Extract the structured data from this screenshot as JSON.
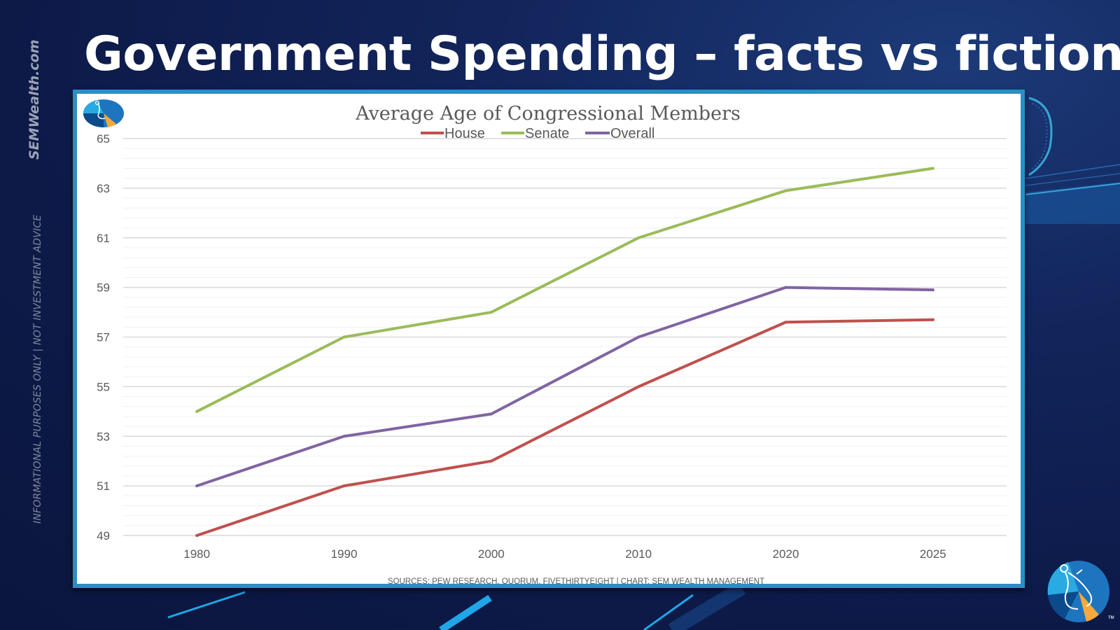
{
  "slide": {
    "title": "Government Spending – facts vs fiction",
    "brand": "SEMWealth.com",
    "disclaimer": "INFORMATIONAL PURPOSES ONLY  |  NOT INVESTMENT ADVICE",
    "trademark": "TM"
  },
  "colors": {
    "house": "#c0504d",
    "senate": "#9bbb59",
    "overall": "#8064a2",
    "frame": "#2a8fc4",
    "background": "#0d1a48"
  },
  "chart_data": {
    "type": "line",
    "title": "Average Age of Congressional Members",
    "categories": [
      "1980",
      "1990",
      "2000",
      "2010",
      "2020",
      "2025"
    ],
    "series": [
      {
        "name": "House",
        "values": [
          49,
          51,
          52,
          55,
          57.6,
          57.7
        ]
      },
      {
        "name": "Senate",
        "values": [
          54,
          57,
          58,
          61,
          62.9,
          63.8
        ]
      },
      {
        "name": "Overall",
        "values": [
          51,
          53,
          53.9,
          57,
          59,
          58.9
        ]
      }
    ],
    "xlabel": "",
    "ylabel": "",
    "ylim": [
      49,
      65
    ],
    "yticks": [
      "49",
      "51",
      "53",
      "55",
      "57",
      "59",
      "61",
      "63",
      "65"
    ],
    "grid": true,
    "legend": "top",
    "source": "SOURCES: PEW RESEARCH, QUORUM, FIVETHIRTYEIGHT | CHART: SEM WEALTH MANAGEMENT"
  }
}
